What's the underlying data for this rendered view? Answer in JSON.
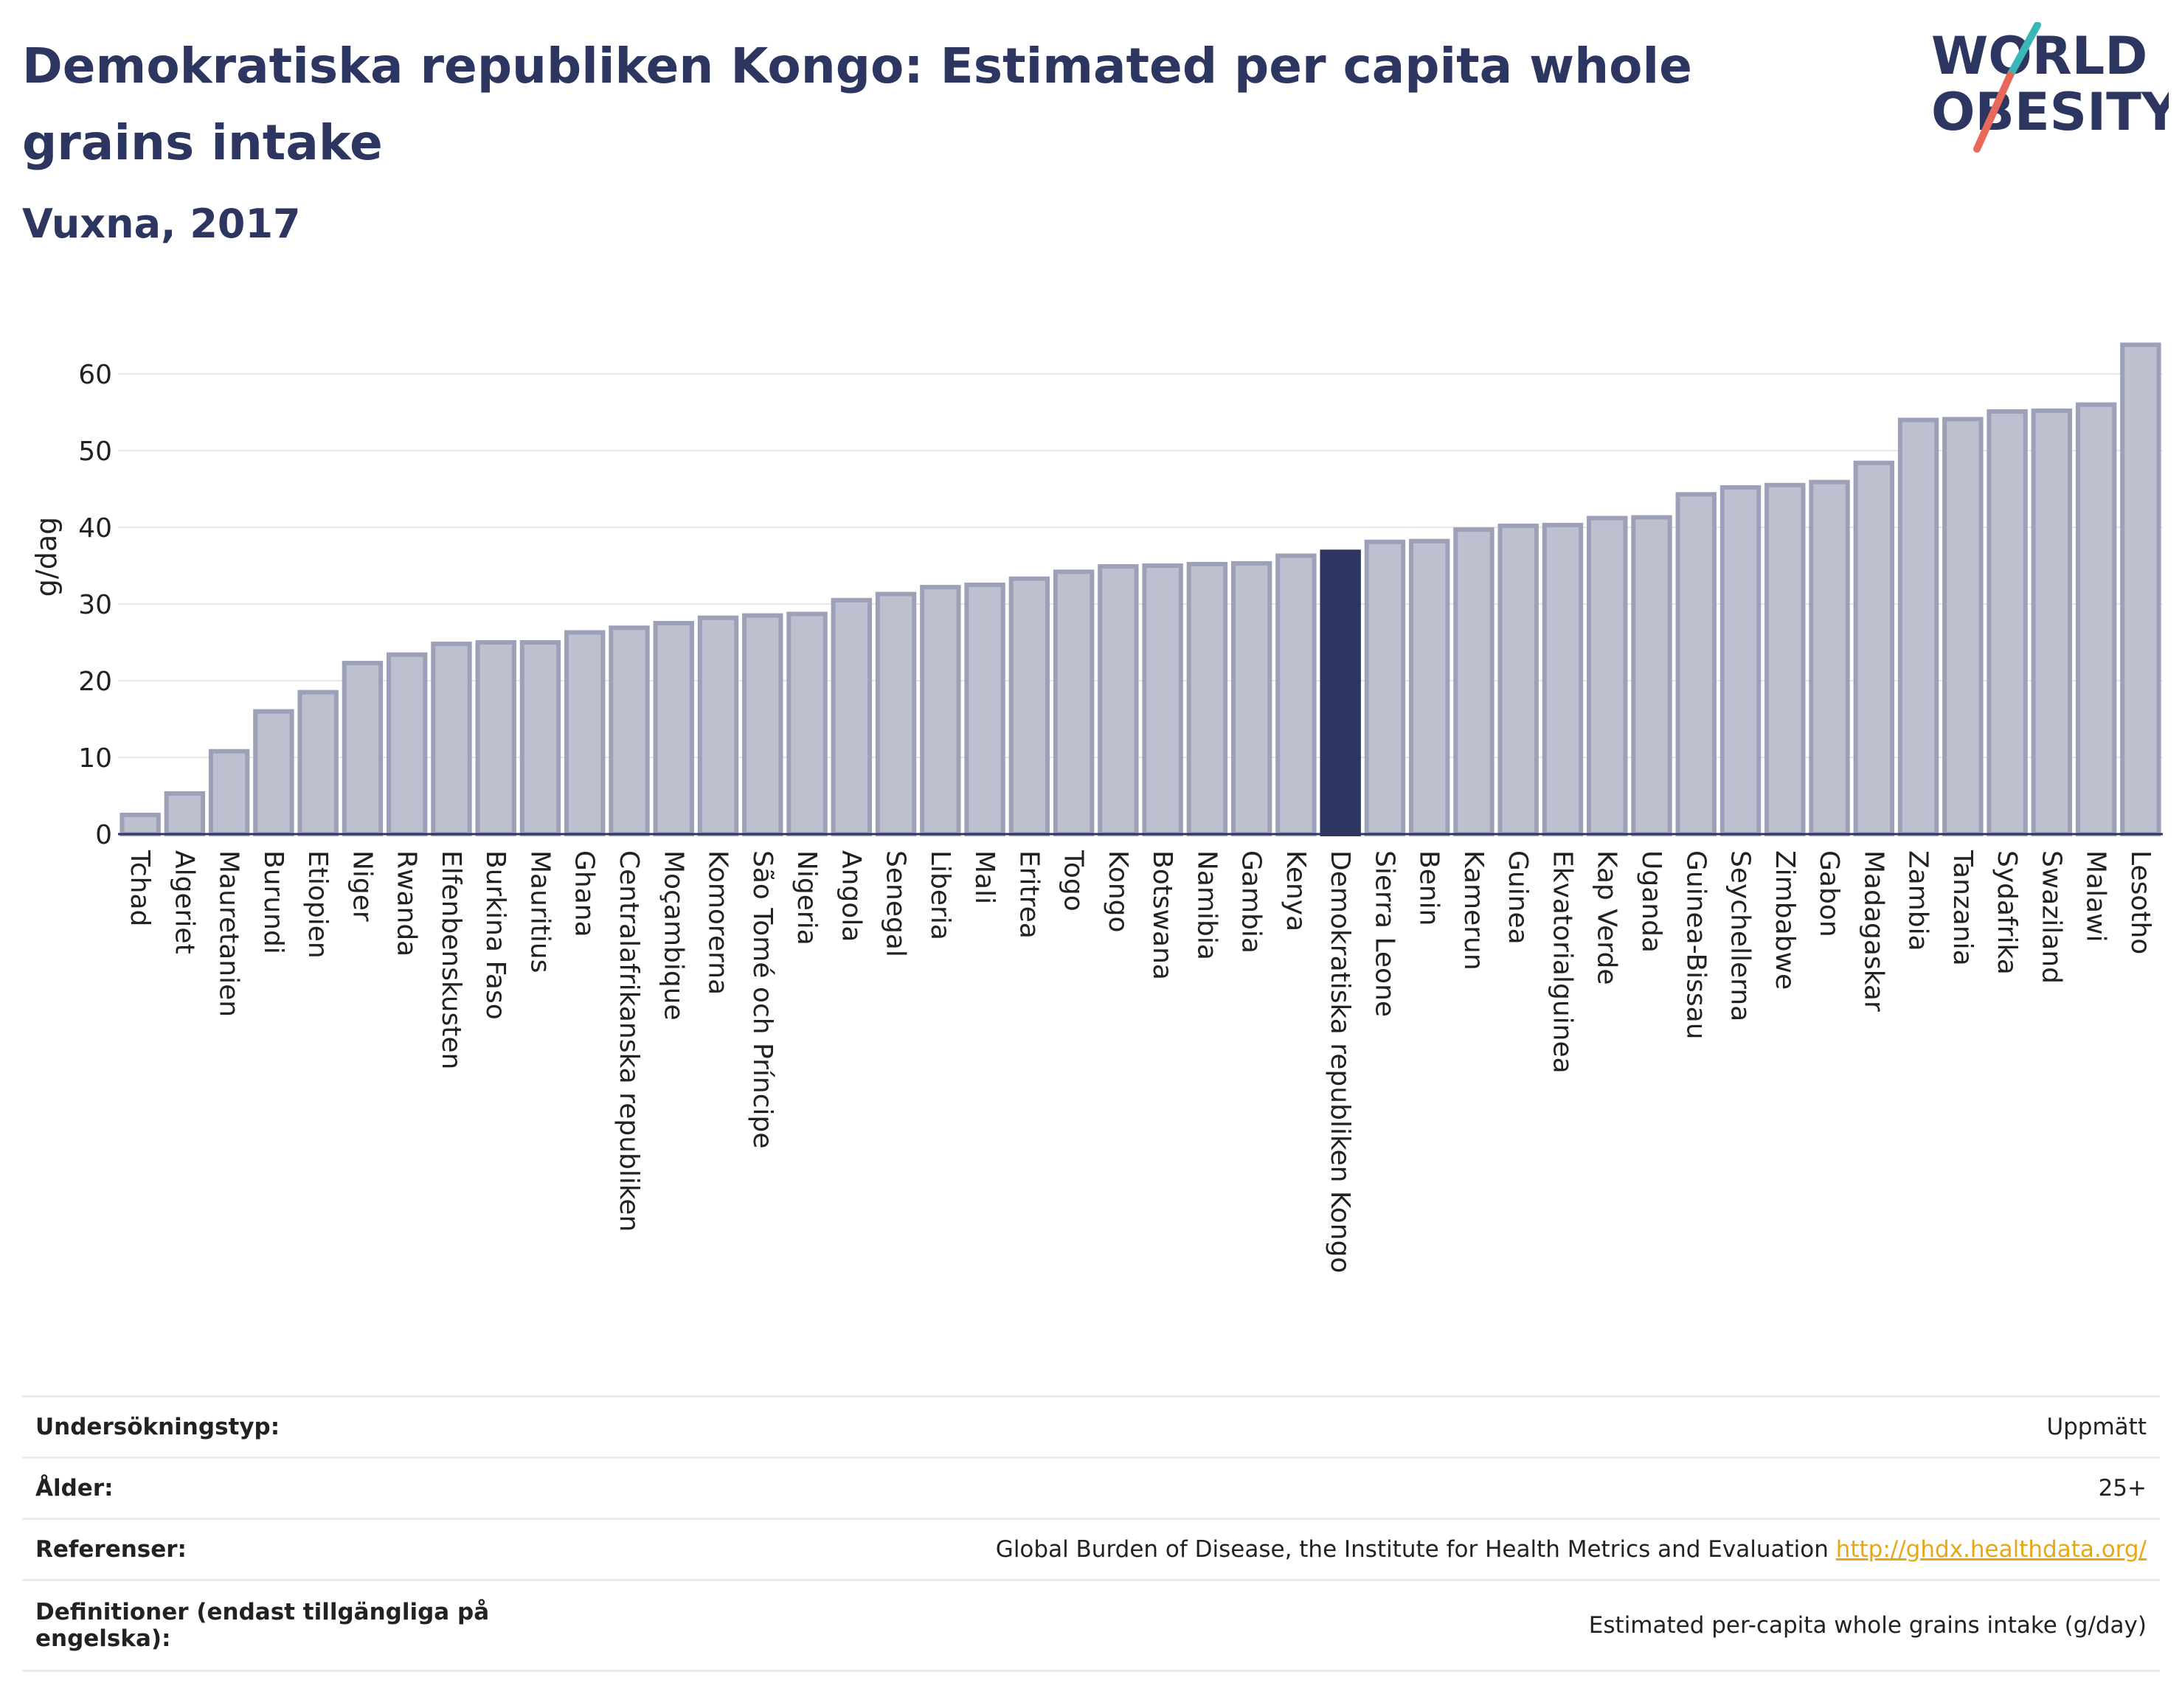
{
  "header": {
    "title": "Demokratiska republiken Kongo: Estimated per capita whole grains intake",
    "subtitle": "Vuxna, 2017"
  },
  "logo": {
    "line1": "WORLD",
    "line2": "OBESITY",
    "colors": {
      "text": "#2d3660",
      "slash_teal": "#3bb6b8",
      "slash_red": "#e8685a"
    }
  },
  "colors": {
    "bar": "#bdc0ce",
    "bar_stroke": "#9da1b8",
    "highlight": "#2d3660",
    "grid": "#e6e6e6"
  },
  "chart_data": {
    "type": "bar",
    "ylabel": "g/dag",
    "xlabel": "",
    "ylim": [
      0,
      65
    ],
    "yticks": [
      0,
      10,
      20,
      30,
      40,
      50,
      60
    ],
    "grid": true,
    "highlight": "Demokratiska republiken Kongo",
    "categories": [
      "Tchad",
      "Algeriet",
      "Mauretanien",
      "Burundi",
      "Etiopien",
      "Niger",
      "Rwanda",
      "Elfenbenskusten",
      "Burkina Faso",
      "Mauritius",
      "Ghana",
      "Centralafrikanska republiken",
      "Moçambique",
      "Komorerna",
      "São Tomé och Príncipe",
      "Nigeria",
      "Angola",
      "Senegal",
      "Liberia",
      "Mali",
      "Eritrea",
      "Togo",
      "Kongo",
      "Botswana",
      "Namibia",
      "Gambia",
      "Kenya",
      "Demokratiska republiken Kongo",
      "Sierra Leone",
      "Benin",
      "Kamerun",
      "Guinea",
      "Ekvatorialguinea",
      "Kap Verde",
      "Uganda",
      "Guinea-Bissau",
      "Seychellerna",
      "Zimbabwe",
      "Gabon",
      "Madagaskar",
      "Zambia",
      "Tanzania",
      "Sydafrika",
      "Swaziland",
      "Malawi",
      "Lesotho"
    ],
    "values": [
      2.5,
      5.3,
      10.8,
      16.0,
      18.5,
      22.3,
      23.4,
      24.8,
      25.0,
      25.0,
      26.3,
      26.9,
      27.5,
      28.2,
      28.5,
      28.7,
      30.5,
      31.3,
      32.2,
      32.5,
      33.3,
      34.2,
      34.9,
      35.0,
      35.2,
      35.3,
      36.3,
      36.8,
      38.1,
      38.2,
      39.7,
      40.2,
      40.3,
      41.2,
      41.3,
      44.3,
      45.2,
      45.5,
      45.9,
      48.4,
      54.0,
      54.1,
      55.1,
      55.2,
      56.0,
      63.8
    ]
  },
  "info": {
    "rows": [
      {
        "label": "Undersökningstyp:",
        "value": "Uppmätt"
      },
      {
        "label": "Ålder:",
        "value": "25+"
      },
      {
        "label": "Referenser:",
        "value": "Global Burden of Disease, the Institute for Health Metrics and Evaluation",
        "link": "http://ghdx.healthdata.org/"
      },
      {
        "label": "Definitioner (endast tillgängliga på engelska):",
        "value": "Estimated per-capita whole grains intake (g/day)"
      }
    ]
  }
}
